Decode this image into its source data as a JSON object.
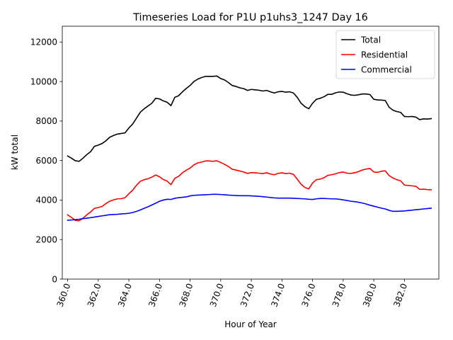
{
  "chart_data": {
    "type": "line",
    "title": "Timeseries Load for P1U p1uhs3_1247  Day 16",
    "xlabel": "Hour of Year",
    "ylabel": "kW total",
    "xlim": [
      359.65,
      384.25
    ],
    "ylim": [
      0,
      12800
    ],
    "grid": false,
    "legend_position": "top-right",
    "x_ticks": [
      360,
      362,
      364,
      366,
      368,
      370,
      372,
      374,
      376,
      378,
      380,
      382
    ],
    "x_tick_labels": [
      "360.0",
      "362.0",
      "364.0",
      "366.0",
      "368.0",
      "370.0",
      "372.0",
      "374.0",
      "376.0",
      "378.0",
      "380.0",
      "382.0"
    ],
    "y_ticks": [
      0,
      2000,
      4000,
      6000,
      8000,
      10000,
      12000
    ],
    "y_tick_labels": [
      "0",
      "2000",
      "4000",
      "6000",
      "8000",
      "10000",
      "12000"
    ],
    "x": [
      360.0,
      360.25,
      360.5,
      360.75,
      361.0,
      361.25,
      361.5,
      361.75,
      362.0,
      362.25,
      362.5,
      362.75,
      363.0,
      363.25,
      363.5,
      363.75,
      364.0,
      364.25,
      364.5,
      364.75,
      365.0,
      365.25,
      365.5,
      365.75,
      366.0,
      366.25,
      366.5,
      366.75,
      367.0,
      367.25,
      367.5,
      367.75,
      368.0,
      368.25,
      368.5,
      368.75,
      369.0,
      369.25,
      369.5,
      369.75,
      370.0,
      370.25,
      370.5,
      370.75,
      371.0,
      371.25,
      371.5,
      371.75,
      372.0,
      372.25,
      372.5,
      372.75,
      373.0,
      373.25,
      373.5,
      373.75,
      374.0,
      374.25,
      374.5,
      374.75,
      375.0,
      375.25,
      375.5,
      375.75,
      376.0,
      376.25,
      376.5,
      376.75,
      377.0,
      377.25,
      377.5,
      377.75,
      378.0,
      378.25,
      378.5,
      378.75,
      379.0,
      379.25,
      379.5,
      379.75,
      380.0,
      380.25,
      380.5,
      380.75,
      381.0,
      381.25,
      381.5,
      381.75,
      382.0,
      382.25,
      382.5,
      382.75,
      383.0,
      383.25,
      383.5,
      383.75
    ],
    "series": [
      {
        "name": "Total",
        "color": "#000000",
        "values": [
          6230,
          6120,
          5990,
          5960,
          6120,
          6300,
          6450,
          6720,
          6780,
          6860,
          7000,
          7180,
          7270,
          7340,
          7370,
          7400,
          7650,
          7850,
          8150,
          8450,
          8620,
          8760,
          8900,
          9150,
          9120,
          9020,
          8950,
          8780,
          9200,
          9280,
          9480,
          9650,
          9800,
          10000,
          10120,
          10200,
          10260,
          10260,
          10260,
          10280,
          10150,
          10080,
          9950,
          9800,
          9750,
          9680,
          9640,
          9550,
          9600,
          9580,
          9560,
          9520,
          9550,
          9480,
          9420,
          9480,
          9500,
          9460,
          9480,
          9420,
          9200,
          8900,
          8730,
          8620,
          8900,
          9100,
          9150,
          9230,
          9350,
          9350,
          9430,
          9470,
          9460,
          9380,
          9320,
          9300,
          9330,
          9370,
          9370,
          9340,
          9100,
          9070,
          9060,
          9040,
          8700,
          8550,
          8480,
          8440,
          8230,
          8220,
          8230,
          8200,
          8070,
          8110,
          8100,
          8120
        ]
      },
      {
        "name": "Residential",
        "color": "#ff0000",
        "values": [
          3250,
          3120,
          2970,
          2950,
          3080,
          3250,
          3400,
          3580,
          3620,
          3680,
          3820,
          3940,
          4010,
          4060,
          4070,
          4120,
          4320,
          4500,
          4750,
          4950,
          5030,
          5080,
          5160,
          5270,
          5180,
          5040,
          4960,
          4780,
          5100,
          5200,
          5380,
          5510,
          5620,
          5780,
          5880,
          5920,
          5980,
          5980,
          5960,
          5990,
          5900,
          5810,
          5700,
          5560,
          5520,
          5470,
          5420,
          5350,
          5390,
          5380,
          5360,
          5340,
          5380,
          5320,
          5280,
          5350,
          5380,
          5340,
          5360,
          5300,
          5060,
          4800,
          4640,
          4560,
          4860,
          5030,
          5060,
          5130,
          5250,
          5280,
          5330,
          5390,
          5420,
          5360,
          5350,
          5380,
          5440,
          5520,
          5570,
          5600,
          5420,
          5400,
          5460,
          5480,
          5240,
          5120,
          5030,
          4980,
          4760,
          4740,
          4720,
          4700,
          4540,
          4550,
          4530,
          4520
        ]
      },
      {
        "name": "Commercial",
        "color": "#0000ff",
        "values": [
          2980,
          2990,
          3010,
          3030,
          3060,
          3080,
          3110,
          3140,
          3170,
          3200,
          3230,
          3260,
          3270,
          3280,
          3300,
          3310,
          3330,
          3370,
          3430,
          3500,
          3580,
          3660,
          3750,
          3840,
          3940,
          4000,
          4040,
          4030,
          4090,
          4120,
          4140,
          4160,
          4210,
          4240,
          4250,
          4260,
          4270,
          4280,
          4290,
          4290,
          4280,
          4270,
          4250,
          4240,
          4230,
          4220,
          4220,
          4220,
          4210,
          4200,
          4190,
          4170,
          4150,
          4130,
          4110,
          4100,
          4100,
          4100,
          4100,
          4090,
          4080,
          4070,
          4060,
          4040,
          4030,
          4060,
          4080,
          4080,
          4070,
          4060,
          4060,
          4040,
          4010,
          3980,
          3940,
          3920,
          3890,
          3850,
          3800,
          3740,
          3690,
          3640,
          3590,
          3550,
          3480,
          3430,
          3430,
          3440,
          3450,
          3470,
          3490,
          3510,
          3530,
          3550,
          3570,
          3590
        ]
      }
    ]
  }
}
